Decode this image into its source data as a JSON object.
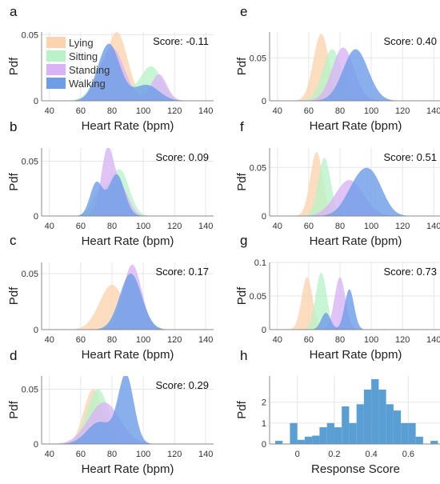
{
  "colors": {
    "Lying": "#fbd3ae",
    "Sitting": "#b9f2c8",
    "Standing": "#d9b3f5",
    "Walking": "#6f9ee8",
    "histogram": "#5a9fd4"
  },
  "chart_data": [
    {
      "type": "area",
      "panel": "a",
      "title": "",
      "xlabel": "Heart Rate (bpm)",
      "ylabel": "Pdf",
      "xlim": [
        35,
        145
      ],
      "ylim": [
        0,
        0.052
      ],
      "xticks": [
        "40",
        "60",
        "80",
        "100",
        "120",
        "140"
      ],
      "yticks": [
        "0",
        "0.05"
      ],
      "score_text": "Score: -0.11",
      "legend": {
        "position": "top-left",
        "entries": [
          "Lying",
          "Sitting",
          "Standing",
          "Walking"
        ]
      },
      "series": [
        {
          "name": "Lying",
          "peaks": [
            [
              83,
              0.052,
              7
            ]
          ]
        },
        {
          "name": "Sitting",
          "peaks": [
            [
              78,
              0.033,
              8
            ],
            [
              105,
              0.026,
              7
            ]
          ]
        },
        {
          "name": "Standing",
          "peaks": [
            [
              80,
              0.04,
              8
            ],
            [
              110,
              0.02,
              5
            ]
          ]
        },
        {
          "name": "Walking",
          "peaks": [
            [
              78,
              0.043,
              7
            ],
            [
              102,
              0.012,
              8
            ]
          ]
        }
      ]
    },
    {
      "type": "area",
      "panel": "b",
      "title": "",
      "xlabel": "Heart Rate (bpm)",
      "ylabel": "Pdf",
      "xlim": [
        35,
        145
      ],
      "ylim": [
        0,
        0.062
      ],
      "xticks": [
        "40",
        "60",
        "80",
        "100",
        "120",
        "140"
      ],
      "yticks": [
        "0",
        "0.05"
      ],
      "score_text": "Score: 0.09",
      "series": [
        {
          "name": "Lying",
          "peaks": [
            [
              80,
              0.03,
              7
            ]
          ]
        },
        {
          "name": "Sitting",
          "peaks": [
            [
              85,
              0.042,
              6
            ],
            [
              72,
              0.02,
              5
            ]
          ]
        },
        {
          "name": "Standing",
          "peaks": [
            [
              77,
              0.058,
              4
            ],
            [
              86,
              0.025,
              5
            ]
          ]
        },
        {
          "name": "Walking",
          "peaks": [
            [
              70,
              0.03,
              4
            ],
            [
              83,
              0.038,
              5
            ]
          ]
        }
      ]
    },
    {
      "type": "area",
      "panel": "c",
      "title": "",
      "xlabel": "Heart Rate (bpm)",
      "ylabel": "Pdf",
      "xlim": [
        35,
        145
      ],
      "ylim": [
        0,
        0.06
      ],
      "xticks": [
        "40",
        "60",
        "80",
        "100",
        "120",
        "140"
      ],
      "yticks": [
        "0",
        "0.05"
      ],
      "score_text": "Score: 0.17",
      "series": [
        {
          "name": "Lying",
          "peaks": [
            [
              80,
              0.04,
              8
            ]
          ]
        },
        {
          "name": "Sitting",
          "peaks": [
            [
              92,
              0.045,
              7
            ]
          ]
        },
        {
          "name": "Standing",
          "peaks": [
            [
              93,
              0.058,
              6
            ]
          ]
        },
        {
          "name": "Walking",
          "peaks": [
            [
              92,
              0.05,
              7
            ]
          ]
        }
      ]
    },
    {
      "type": "area",
      "panel": "d",
      "title": "",
      "xlabel": "Heart Rate (bpm)",
      "ylabel": "Pdf",
      "xlim": [
        35,
        145
      ],
      "ylim": [
        0,
        0.062
      ],
      "xticks": [
        "40",
        "60",
        "80",
        "100",
        "120",
        "140"
      ],
      "yticks": [
        "0",
        "0.05"
      ],
      "score_text": "Score: 0.29",
      "series": [
        {
          "name": "Lying",
          "peaks": [
            [
              68,
              0.05,
              6
            ]
          ]
        },
        {
          "name": "Sitting",
          "peaks": [
            [
              71,
              0.05,
              7
            ]
          ]
        },
        {
          "name": "Standing",
          "peaks": [
            [
              75,
              0.038,
              10
            ]
          ]
        },
        {
          "name": "Walking",
          "peaks": [
            [
              89,
              0.062,
              5
            ],
            [
              72,
              0.02,
              8
            ]
          ]
        }
      ]
    },
    {
      "type": "area",
      "panel": "e",
      "title": "",
      "xlabel": "Heart Rate (bpm)",
      "ylabel": "Pdf",
      "xlim": [
        35,
        145
      ],
      "ylim": [
        0,
        0.08
      ],
      "xticks": [
        "40",
        "60",
        "80",
        "100",
        "120",
        "140"
      ],
      "yticks": [
        "0",
        "0.05"
      ],
      "score_text": "Score: 0.40",
      "series": [
        {
          "name": "Lying",
          "peaks": [
            [
              68,
              0.078,
              5
            ]
          ]
        },
        {
          "name": "Sitting",
          "peaks": [
            [
              75,
              0.06,
              6
            ]
          ]
        },
        {
          "name": "Standing",
          "peaks": [
            [
              82,
              0.062,
              7
            ]
          ]
        },
        {
          "name": "Walking",
          "peaks": [
            [
              90,
              0.06,
              8
            ]
          ]
        }
      ]
    },
    {
      "type": "area",
      "panel": "f",
      "title": "",
      "xlabel": "Heart Rate (bpm)",
      "ylabel": "Pdf",
      "xlim": [
        35,
        145
      ],
      "ylim": [
        0,
        0.07
      ],
      "xticks": [
        "40",
        "60",
        "80",
        "100",
        "120",
        "140"
      ],
      "yticks": [
        "0",
        "0.05"
      ],
      "score_text": "Score: 0.51",
      "series": [
        {
          "name": "Lying",
          "peaks": [
            [
              65,
              0.066,
              4
            ]
          ]
        },
        {
          "name": "Sitting",
          "peaks": [
            [
              70,
              0.06,
              4
            ]
          ]
        },
        {
          "name": "Standing",
          "peaks": [
            [
              86,
              0.037,
              9
            ]
          ]
        },
        {
          "name": "Walking",
          "peaks": [
            [
              92,
              0.034,
              8
            ],
            [
              102,
              0.028,
              7
            ]
          ]
        }
      ]
    },
    {
      "type": "area",
      "panel": "g",
      "title": "",
      "xlabel": "Heart Rate (bpm)",
      "ylabel": "Pdf",
      "xlim": [
        35,
        145
      ],
      "ylim": [
        0,
        0.1
      ],
      "xticks": [
        "40",
        "60",
        "80",
        "100",
        "120",
        "140"
      ],
      "yticks": [
        "0",
        "0.05",
        "0.1"
      ],
      "score_text": "Score: 0.73",
      "series": [
        {
          "name": "Lying",
          "peaks": [
            [
              59,
              0.078,
              3.5
            ]
          ]
        },
        {
          "name": "Sitting",
          "peaks": [
            [
              68,
              0.085,
              3.5
            ]
          ]
        },
        {
          "name": "Standing",
          "peaks": [
            [
              80,
              0.078,
              3.5
            ]
          ]
        },
        {
          "name": "Walking",
          "peaks": [
            [
              86,
              0.06,
              3
            ],
            [
              71,
              0.025,
              3
            ]
          ]
        }
      ]
    },
    {
      "type": "bar",
      "panel": "h",
      "title": "",
      "xlabel": "Response Score",
      "ylabel": "Pdf",
      "xlim": [
        -0.15,
        0.78
      ],
      "ylim": [
        0,
        3.25
      ],
      "xticks": [
        "0",
        "0.2",
        "0.4",
        "0.6"
      ],
      "yticks": [
        "0",
        "1",
        "2"
      ],
      "bin_width": 0.04,
      "bins": [
        [
          -0.12,
          0.15
        ],
        [
          -0.04,
          1.0
        ],
        [
          0.0,
          0.2
        ],
        [
          0.04,
          0.35
        ],
        [
          0.08,
          0.4
        ],
        [
          0.12,
          0.8
        ],
        [
          0.16,
          1.0
        ],
        [
          0.2,
          0.8
        ],
        [
          0.24,
          1.8
        ],
        [
          0.28,
          1.0
        ],
        [
          0.32,
          1.9
        ],
        [
          0.36,
          2.6
        ],
        [
          0.4,
          3.1
        ],
        [
          0.44,
          2.6
        ],
        [
          0.48,
          1.9
        ],
        [
          0.52,
          1.6
        ],
        [
          0.56,
          1.0
        ],
        [
          0.6,
          1.0
        ],
        [
          0.64,
          0.35
        ],
        [
          0.72,
          0.15
        ]
      ]
    }
  ]
}
